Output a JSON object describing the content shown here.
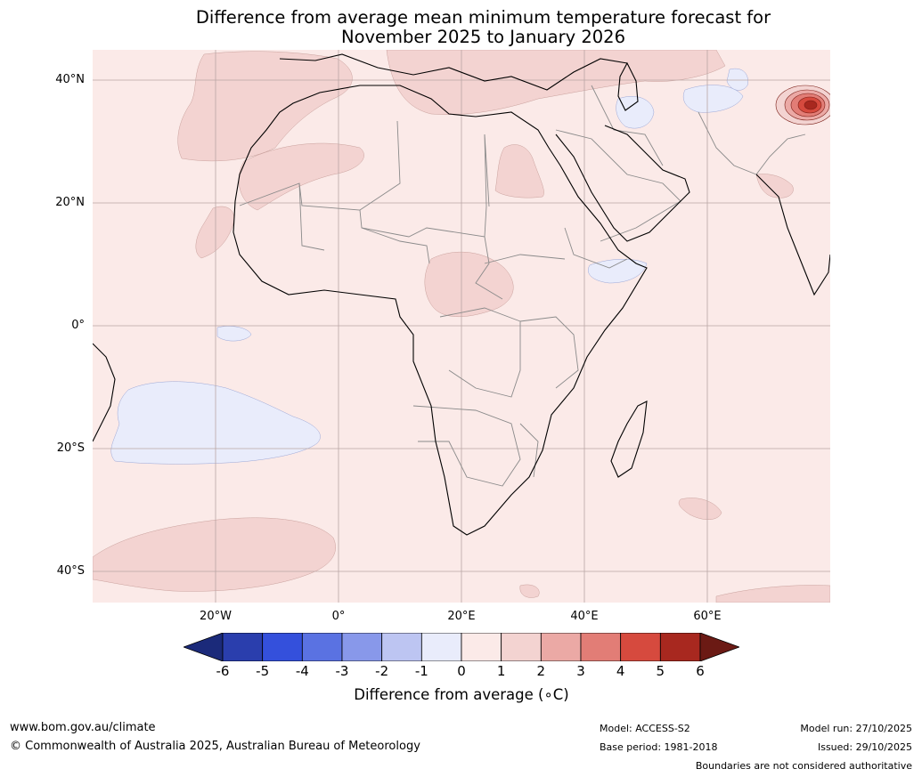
{
  "title": {
    "line1": "Difference from average mean minimum temperature forecast for",
    "line2": "November 2025 to January 2026"
  },
  "map": {
    "region": "Africa",
    "lat_labels": [
      "40°N",
      "20°N",
      "0°",
      "20°S",
      "40°S"
    ],
    "lon_labels": [
      "20°W",
      "0°",
      "20°E",
      "40°E",
      "60°E"
    ],
    "ocean_color": "#fbeae8",
    "anomaly_features": [
      {
        "area": "North Atlantic west of Morocco",
        "class": "1 to 2"
      },
      {
        "area": "Western Sahara / Mauritania coast",
        "class": "1 to 2"
      },
      {
        "area": "Egypt / Red Sea",
        "class": "1 to 2"
      },
      {
        "area": "Central Africa",
        "class": "1 to 2"
      },
      {
        "area": "Mediterranean / southern Europe",
        "class": "1 to 2"
      },
      {
        "area": "Himalaya / Tibet",
        "class": "4 to 6"
      },
      {
        "area": "Iran / Afghanistan",
        "class": "-1 to 0"
      },
      {
        "area": "Horn of Africa",
        "class": "-1 to 0"
      },
      {
        "area": "South Atlantic",
        "class": "-1 to 0"
      },
      {
        "area": "Southern Ocean",
        "class": "1 to 2"
      }
    ]
  },
  "colorbar": {
    "ticks": [
      "-6",
      "-5",
      "-4",
      "-3",
      "-2",
      "-1",
      "0",
      "1",
      "2",
      "3",
      "4",
      "5",
      "6"
    ],
    "colors": [
      "#1b2a7a",
      "#2a3ead",
      "#3450dc",
      "#5a72e2",
      "#8898ea",
      "#bdc5f2",
      "#e9ecfb",
      "#fbeae8",
      "#f3d3d1",
      "#eba9a5",
      "#e27d76",
      "#d64a3e",
      "#a8281f",
      "#6b1a14"
    ],
    "label": "Difference from average (∘C)"
  },
  "footer": {
    "website": "www.bom.gov.au/climate",
    "copyright": "© Commonwealth of Australia 2025, Australian Bureau of Meteorology",
    "model": "Model: ACCESS-S2",
    "base_period": "Base period: 1981-2018",
    "model_run": "Model run: 27/10/2025",
    "issued": "Issued: 29/10/2025",
    "disclaimer": "Boundaries are not considered authoritative"
  }
}
